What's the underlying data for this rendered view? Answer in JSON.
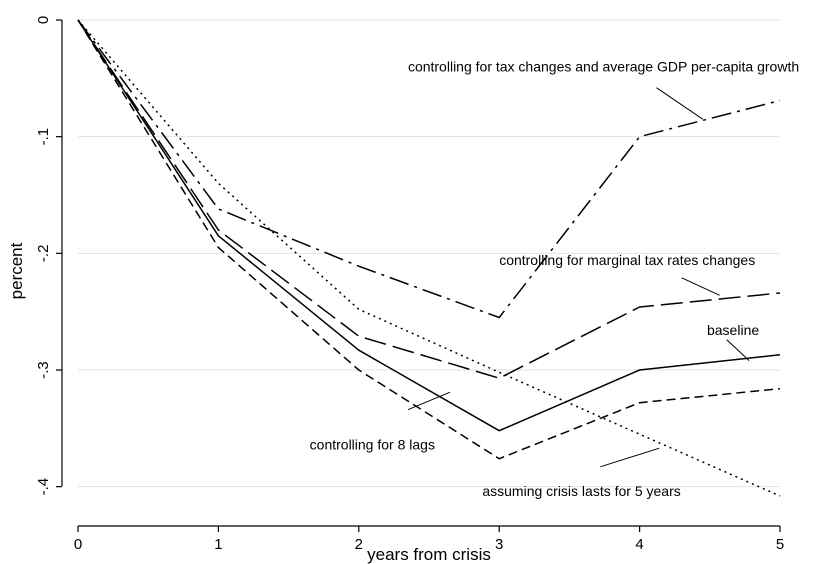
{
  "chart_data": {
    "type": "line",
    "title": "",
    "xlabel": "years from crisis",
    "ylabel": "percent",
    "xlim": [
      0,
      5
    ],
    "ylim": [
      -0.42,
      0
    ],
    "grid": true,
    "x": [
      0,
      1,
      2,
      3,
      4,
      5
    ],
    "x_ticks": [
      {
        "value": 0,
        "label": "0"
      },
      {
        "value": 1,
        "label": "1"
      },
      {
        "value": 2,
        "label": "2"
      },
      {
        "value": 3,
        "label": "3"
      },
      {
        "value": 4,
        "label": "4"
      },
      {
        "value": 5,
        "label": "5"
      }
    ],
    "y_ticks": [
      {
        "value": 0,
        "label": "0"
      },
      {
        "value": -0.1,
        "label": "-.1"
      },
      {
        "value": -0.2,
        "label": "-.2"
      },
      {
        "value": -0.3,
        "label": "-.3"
      },
      {
        "value": -0.4,
        "label": "-.4"
      }
    ],
    "series": [
      {
        "name": "baseline",
        "style": "solid",
        "values": [
          0,
          -0.185,
          -0.283,
          -0.352,
          -0.3,
          -0.287
        ]
      },
      {
        "name": "controlling for 8 lags",
        "style": "short-dash",
        "values": [
          0,
          -0.195,
          -0.3,
          -0.376,
          -0.328,
          -0.316
        ]
      },
      {
        "name": "controlling for marginal tax rates changes",
        "style": "long-dash",
        "values": [
          0,
          -0.18,
          -0.271,
          -0.307,
          -0.246,
          -0.234
        ]
      },
      {
        "name": "controlling for tax changes and average GDP per-capita growth",
        "style": "dash-dot",
        "values": [
          0,
          -0.162,
          -0.211,
          -0.255,
          -0.1,
          -0.069
        ]
      },
      {
        "name": "assuming crisis lasts for 5 years",
        "style": "dotted",
        "values": [
          0,
          -0.14,
          -0.248,
          -0.302,
          -0.355,
          -0.408
        ]
      }
    ],
    "annotations": [
      {
        "series": "controlling for tax changes and average GDP per-capita growth",
        "text": "controlling for tax changes and average GDP per-capita growth",
        "x": 2.35,
        "y": -0.044,
        "anchor": "start",
        "pointer": [
          [
            4.12,
            -0.058
          ],
          [
            4.45,
            -0.085
          ]
        ]
      },
      {
        "series": "controlling for marginal tax rates changes",
        "text": "controlling for marginal tax rates changes",
        "x": 3.0,
        "y": -0.21,
        "anchor": "start",
        "pointer": [
          [
            4.3,
            -0.221
          ],
          [
            4.57,
            -0.236
          ]
        ]
      },
      {
        "series": "baseline",
        "text": "baseline",
        "x": 4.48,
        "y": -0.27,
        "anchor": "start",
        "pointer": [
          [
            4.62,
            -0.274
          ],
          [
            4.78,
            -0.292
          ]
        ]
      },
      {
        "series": "controlling for 8 lags",
        "text": "controlling for 8 lags",
        "x": 1.65,
        "y": -0.368,
        "anchor": "start",
        "pointer": [
          [
            2.35,
            -0.334
          ],
          [
            2.65,
            -0.319
          ]
        ]
      },
      {
        "series": "assuming crisis lasts for 5 years",
        "text": "assuming crisis lasts for 5 years",
        "x": 2.88,
        "y": -0.408,
        "anchor": "start",
        "pointer": [
          [
            3.72,
            -0.383
          ],
          [
            4.14,
            -0.367
          ]
        ]
      }
    ]
  }
}
